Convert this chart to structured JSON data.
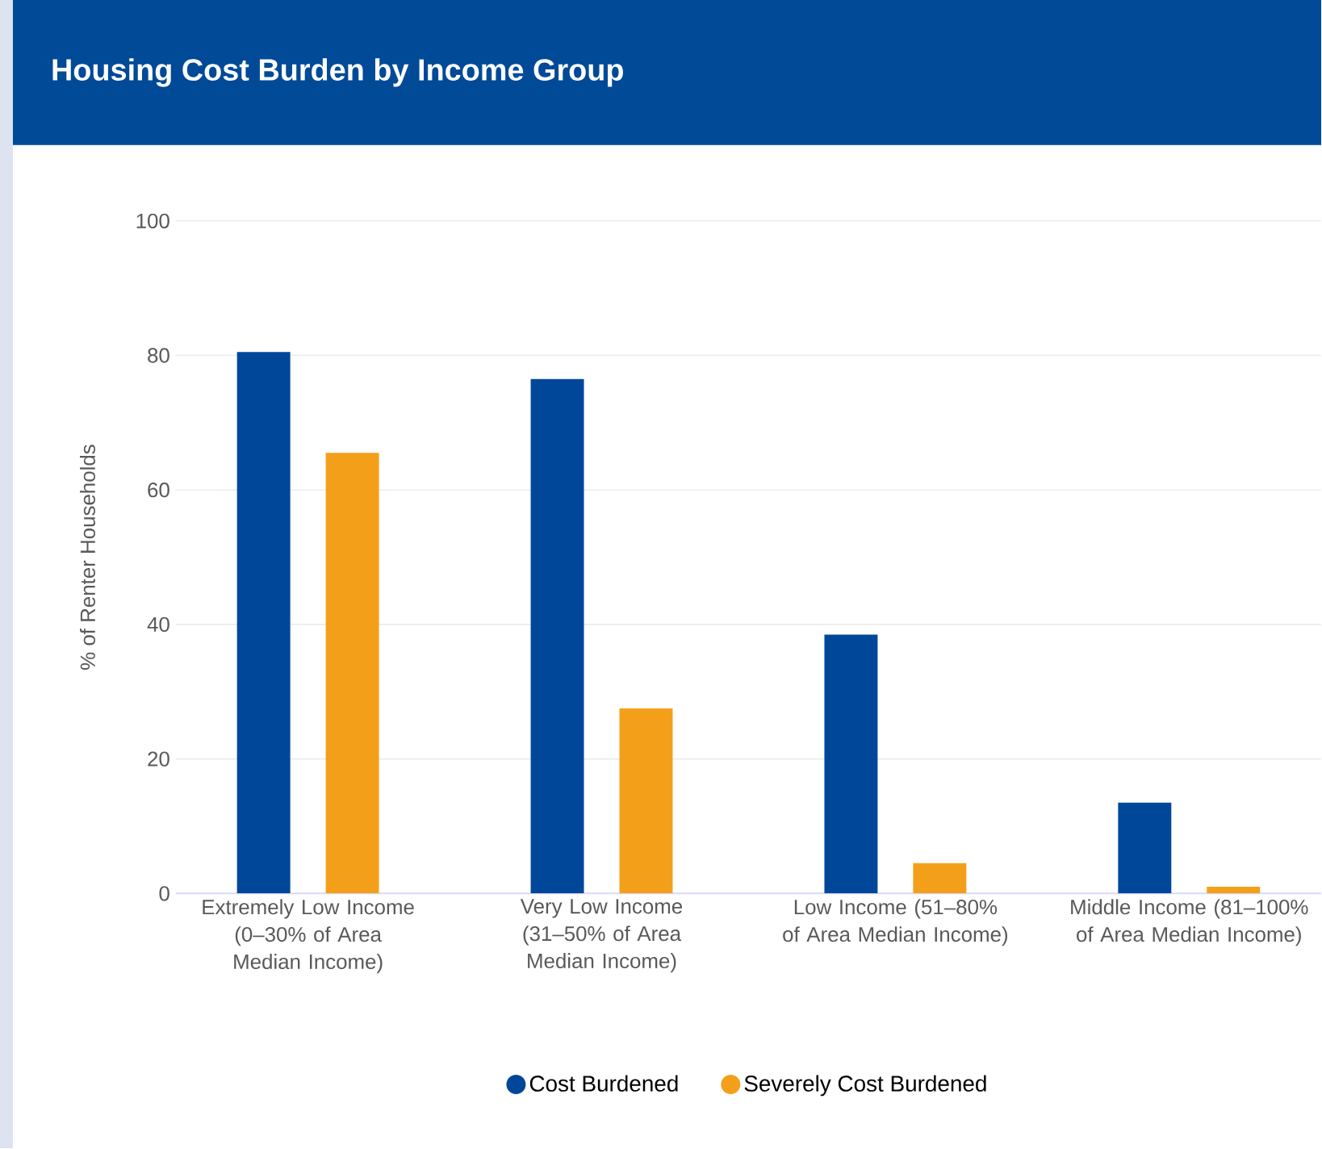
{
  "chart_data": {
    "type": "bar",
    "title": "Housing Cost Burden by Income Group",
    "ylabel": "% of Renter Households",
    "categories": [
      "Extremely Low Income (0–30% of Area Median Income)",
      "Very Low Income (31–50% of Area Median Income)",
      "Low Income (51–80% of Area Median Income)",
      "Middle Income (81–100% of Area Median Income)"
    ],
    "series": [
      {
        "name": "Cost Burdened",
        "color": "#00479a",
        "values": [
          80.5,
          76.5,
          38.5,
          13.5
        ]
      },
      {
        "name": "Severely Cost Burdened",
        "color": "#f49f1a",
        "values": [
          65.5,
          27.5,
          4.5,
          1
        ]
      }
    ],
    "ylim": [
      0,
      100
    ],
    "yticks": [
      0,
      20,
      40,
      60,
      80,
      100
    ],
    "grid": "y",
    "legend": "bottom"
  }
}
